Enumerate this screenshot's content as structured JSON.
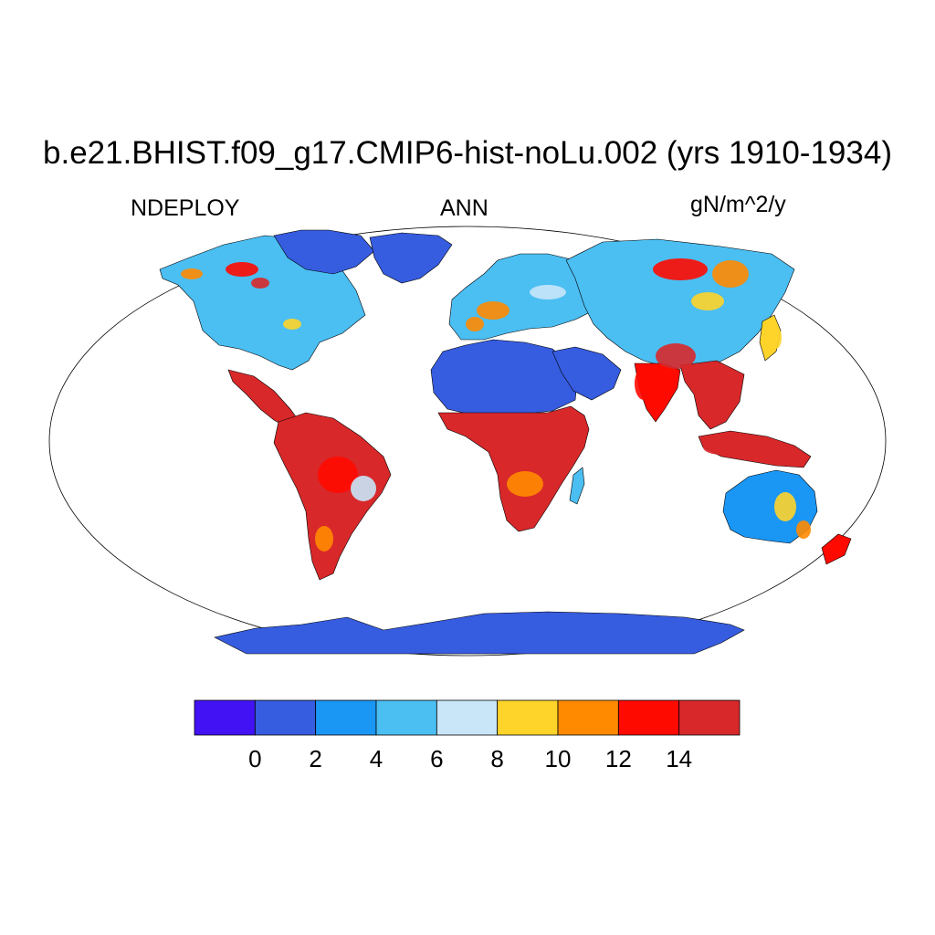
{
  "title": "b.e21.BHIST.f09_g17.CMIP6-hist-noLu.002 (yrs 1910-1934)",
  "subtitles": {
    "left": "NDEPLOY",
    "center": "ANN",
    "right": "gN/m^2/y"
  },
  "map": {
    "projection": "Robinson",
    "features": [
      {
        "name": "north-america",
        "level": 3
      },
      {
        "name": "canadian-arctic-islands",
        "level": 1
      },
      {
        "name": "greenland",
        "level": 1
      },
      {
        "name": "central-america",
        "level": 8
      },
      {
        "name": "south-america",
        "level": 8
      },
      {
        "name": "africa-sahara",
        "level": 1
      },
      {
        "name": "africa-tropics",
        "level": 8
      },
      {
        "name": "madagascar",
        "level": 3
      },
      {
        "name": "europe",
        "level": 3
      },
      {
        "name": "arabia",
        "level": 1
      },
      {
        "name": "asia",
        "level": 3
      },
      {
        "name": "india",
        "level": 7
      },
      {
        "name": "southeast-asia",
        "level": 8
      },
      {
        "name": "japan",
        "level": 5
      },
      {
        "name": "indonesia",
        "level": 8
      },
      {
        "name": "australia",
        "level": 2
      },
      {
        "name": "new-zealand",
        "level": 7
      },
      {
        "name": "antarctica",
        "level": 1
      }
    ]
  },
  "colorbar": {
    "colors": [
      "#4212F5",
      "#365CDF",
      "#1A96F5",
      "#4BBEF2",
      "#C8E6F8",
      "#FFD42A",
      "#FF8A00",
      "#FF0A00",
      "#D8282A"
    ],
    "tick_labels": [
      "0",
      "2",
      "4",
      "6",
      "8",
      "10",
      "12",
      "14"
    ]
  }
}
